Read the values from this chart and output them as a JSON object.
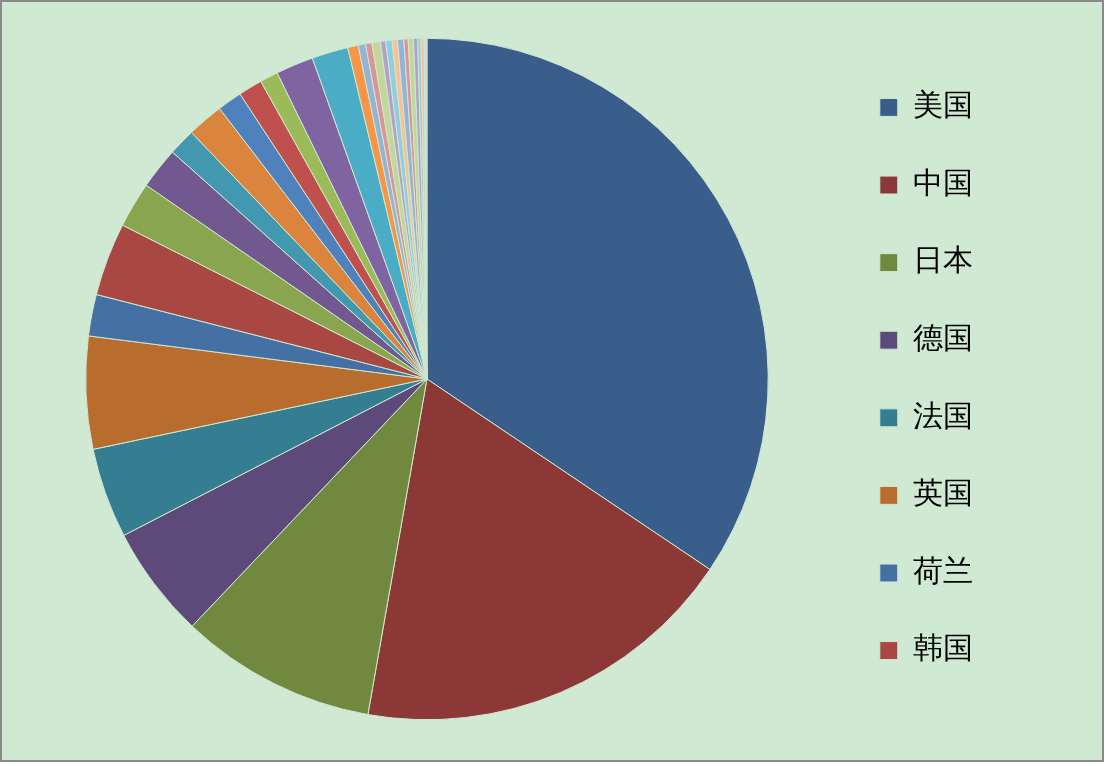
{
  "chart_data": {
    "type": "pie",
    "categories": [
      "美国",
      "中国",
      "日本",
      "德国",
      "法国",
      "英国",
      "荷兰",
      "韩国",
      null,
      null,
      null,
      null,
      null,
      null,
      null,
      null,
      null,
      null,
      null,
      null,
      null,
      null,
      null,
      null,
      null,
      null,
      null,
      null,
      null,
      null,
      null
    ],
    "values": [
      34.44,
      18.33,
      9.31,
      5.33,
      4.28,
      5.33,
      1.97,
      3.47,
      2.17,
      1.97,
      1.28,
      1.72,
      1.17,
      1.14,
      0.86,
      1.78,
      1.72,
      0.5,
      0.35,
      0.3,
      0.4,
      0.25,
      0.3,
      0.25,
      0.3,
      0.2,
      0.25,
      0.2,
      0.15,
      0.15,
      0.13
    ],
    "colors": [
      "#3a5e8c",
      "#8c3836",
      "#71893f",
      "#5d4a7b",
      "#357d91",
      "#b86d2f",
      "#4470a4",
      "#a94743",
      "#89a54e",
      "#71588f",
      "#4198af",
      "#db843d",
      "#4f81bd",
      "#c0504d",
      "#9bbb59",
      "#8064a2",
      "#4bacc6",
      "#f79646",
      "#95b3d7",
      "#d99694",
      "#c3d69b",
      "#b3a2c7",
      "#93cddd",
      "#fac090",
      "#95b3d7",
      "#d99694",
      "#c3d69b",
      "#b3a2c7",
      "#93cddd",
      "#fac090",
      "#c6d9f1"
    ],
    "legend": "right"
  }
}
